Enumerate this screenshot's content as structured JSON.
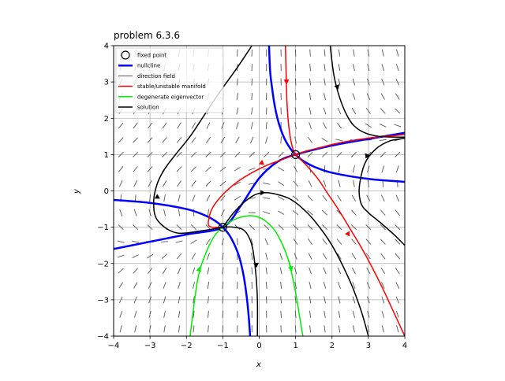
{
  "chart_data": {
    "type": "line",
    "title": "problem 6.3.6",
    "xlabel": "x",
    "ylabel": "y",
    "xlim": [
      -4,
      4
    ],
    "ylim": [
      -4,
      4
    ],
    "xticks": [
      -4,
      -3,
      -2,
      -1,
      0,
      1,
      2,
      3,
      4
    ],
    "yticks": [
      -4,
      -3,
      -2,
      -1,
      0,
      1,
      2,
      3,
      4
    ],
    "grid": true,
    "legend_position": "top-left",
    "legend": [
      {
        "label": "fixed point",
        "kind": "marker",
        "color": "#000000"
      },
      {
        "label": "nullcline",
        "kind": "line",
        "color": "#0000ff"
      },
      {
        "label": "direction field",
        "kind": "line",
        "color": "#555555"
      },
      {
        "label": "stable/unstable manifold",
        "kind": "line",
        "color": "#ff0000"
      },
      {
        "label": "degenerate eigenvector",
        "kind": "line",
        "color": "#00ee00"
      },
      {
        "label": "solution",
        "kind": "line",
        "color": "#000000"
      }
    ],
    "fixed_points": [
      {
        "x": 1,
        "y": 1
      },
      {
        "x": -1,
        "y": -1
      }
    ],
    "series": [
      {
        "legend": "nullcline",
        "color": "#0000ff",
        "width": 2.5,
        "x": [
          0.27,
          0.3,
          0.35,
          0.42,
          0.5,
          0.6,
          0.7,
          0.8,
          0.9,
          1.0,
          1.2,
          1.5,
          2.0,
          3.0,
          4.0
        ],
        "y": [
          4.0,
          3.3,
          2.86,
          2.38,
          2.0,
          1.67,
          1.43,
          1.25,
          1.11,
          1.0,
          0.83,
          0.67,
          0.5,
          0.33,
          0.25
        ]
      },
      {
        "legend": "nullcline",
        "color": "#0000ff",
        "width": 2.5,
        "x": [
          -4.0,
          -3.0,
          -2.0,
          -1.5,
          -1.2,
          -1.0,
          -0.8,
          -0.6,
          -0.5,
          -0.42,
          -0.35,
          -0.3,
          -0.27,
          -0.25
        ],
        "y": [
          -0.25,
          -0.33,
          -0.5,
          -0.67,
          -0.83,
          -1.0,
          -1.25,
          -1.67,
          -2.0,
          -2.38,
          -2.86,
          -3.33,
          -3.7,
          -4.0
        ]
      },
      {
        "legend": "nullcline",
        "color": "#0000ff",
        "width": 2.5,
        "x": [
          -4.0,
          -3.0,
          -2.0,
          -1.0,
          -0.5,
          0.0,
          0.5,
          1.0,
          2.0,
          3.0,
          4.0
        ],
        "y": [
          -1.6,
          -1.4,
          -1.2,
          -1.0,
          -0.4,
          0.35,
          0.8,
          1.0,
          1.25,
          1.43,
          1.6
        ]
      },
      {
        "legend": "stable/unstable manifold",
        "color": "#ff0000",
        "width": 1.5,
        "x": [
          0.72,
          0.74,
          0.76,
          0.8,
          0.85,
          0.9,
          0.95,
          1.0
        ],
        "y": [
          4.0,
          3.2,
          2.5,
          1.9,
          1.5,
          1.25,
          1.1,
          1.0
        ],
        "arrow_at": [
          0.75,
          3.0
        ]
      },
      {
        "legend": "stable/unstable manifold",
        "color": "#ff0000",
        "width": 1.5,
        "x": [
          1.0,
          1.3,
          1.7,
          2.1,
          2.5,
          2.9,
          3.3,
          3.7,
          4.0
        ],
        "y": [
          1.0,
          1.1,
          1.2,
          1.3,
          1.38,
          1.44,
          1.49,
          1.52,
          1.55
        ]
      },
      {
        "legend": "stable/unstable manifold",
        "color": "#ff0000",
        "width": 1.5,
        "x": [
          1.0,
          0.6,
          0.2,
          -0.2,
          -0.6,
          -1.0,
          -1.3,
          -1.4,
          -1.3,
          -1.15,
          -1.0
        ],
        "y": [
          1.0,
          0.85,
          0.7,
          0.5,
          0.25,
          -0.1,
          -0.5,
          -0.9,
          -1.0,
          -1.0,
          -1.0
        ],
        "arrow_at": [
          0.05,
          0.76
        ]
      },
      {
        "legend": "stable/unstable manifold",
        "color": "#ff0000",
        "width": 1.5,
        "x": [
          1.0,
          1.3,
          1.6,
          1.9,
          2.2,
          2.5,
          2.8,
          3.1,
          3.4,
          3.7,
          4.0
        ],
        "y": [
          1.0,
          0.7,
          0.35,
          -0.1,
          -0.55,
          -1.05,
          -1.55,
          -2.1,
          -2.7,
          -3.35,
          -4.0
        ],
        "arrow_at": [
          2.45,
          -1.2
        ]
      },
      {
        "legend": "degenerate eigenvector",
        "color": "#00ee00",
        "width": 1.5,
        "x": [
          -1.9,
          -1.7,
          -1.5,
          -1.2,
          -0.8,
          -0.4,
          -0.1,
          0.2,
          0.5,
          0.8,
          1.0,
          1.1,
          1.2
        ],
        "y": [
          -4.0,
          -2.5,
          -1.8,
          -1.2,
          -0.85,
          -0.7,
          -0.7,
          -0.85,
          -1.2,
          -1.9,
          -2.8,
          -3.4,
          -4.0
        ],
        "arrow_at": [
          -1.65,
          -2.15
        ]
      },
      {
        "legend": "degenerate eigenvector",
        "color": "#00ee00",
        "width": 1.5,
        "x": [
          0.8,
          0.9
        ],
        "y": [
          -1.9,
          -2.2
        ],
        "arrow_at": [
          0.88,
          -2.15
        ]
      },
      {
        "legend": "solution",
        "color": "#000000",
        "width": 1.5,
        "x": [
          -1.0,
          -1.6,
          -2.3,
          -2.8,
          -2.9,
          -2.8,
          -2.6,
          -2.3,
          -1.9,
          -1.5,
          -1.1,
          -0.6,
          -0.2
        ],
        "y": [
          -1.0,
          -1.1,
          -1.15,
          -0.8,
          -0.3,
          0.2,
          0.6,
          1.0,
          1.5,
          2.1,
          2.7,
          3.4,
          4.0
        ],
        "arrow_at": [
          -2.8,
          -0.15
        ]
      },
      {
        "legend": "solution",
        "color": "#000000",
        "width": 1.5,
        "x": [
          -1.0,
          -0.7,
          -0.4,
          -0.2,
          -0.1,
          -0.05,
          -0.05
        ],
        "y": [
          -1.0,
          -1.0,
          -1.1,
          -1.5,
          -2.2,
          -3.0,
          -4.0
        ],
        "arrow_at": [
          -0.08,
          -2.05
        ]
      },
      {
        "legend": "solution",
        "color": "#000000",
        "width": 1.5,
        "x": [
          -1.0,
          -0.7,
          -0.4,
          -0.1,
          0.2,
          0.5,
          0.8,
          1.1,
          1.5,
          2.0,
          2.5,
          2.8,
          3.0
        ],
        "y": [
          -1.0,
          -0.6,
          -0.3,
          -0.1,
          -0.05,
          -0.1,
          -0.2,
          -0.4,
          -0.8,
          -1.5,
          -2.5,
          -3.3,
          -4.0
        ],
        "arrow_at": [
          0.1,
          -0.05
        ]
      },
      {
        "legend": "solution",
        "color": "#000000",
        "width": 1.5,
        "x": [
          1.95,
          2.05,
          2.2,
          2.4,
          2.6,
          2.9,
          3.3,
          3.8,
          4.0
        ],
        "y": [
          4.0,
          3.2,
          2.6,
          2.1,
          1.8,
          1.6,
          1.5,
          1.48,
          1.48
        ],
        "arrow_at": [
          2.15,
          2.85
        ]
      },
      {
        "legend": "solution",
        "color": "#000000",
        "width": 1.5,
        "x": [
          4.0,
          3.6,
          3.2,
          2.9,
          2.75,
          2.8,
          3.0,
          3.3,
          3.7,
          4.0
        ],
        "y": [
          1.45,
          1.38,
          1.15,
          0.75,
          0.1,
          -0.35,
          -0.6,
          -0.85,
          -1.2,
          -1.5
        ],
        "arrow_at": [
          2.95,
          0.95
        ]
      }
    ]
  }
}
